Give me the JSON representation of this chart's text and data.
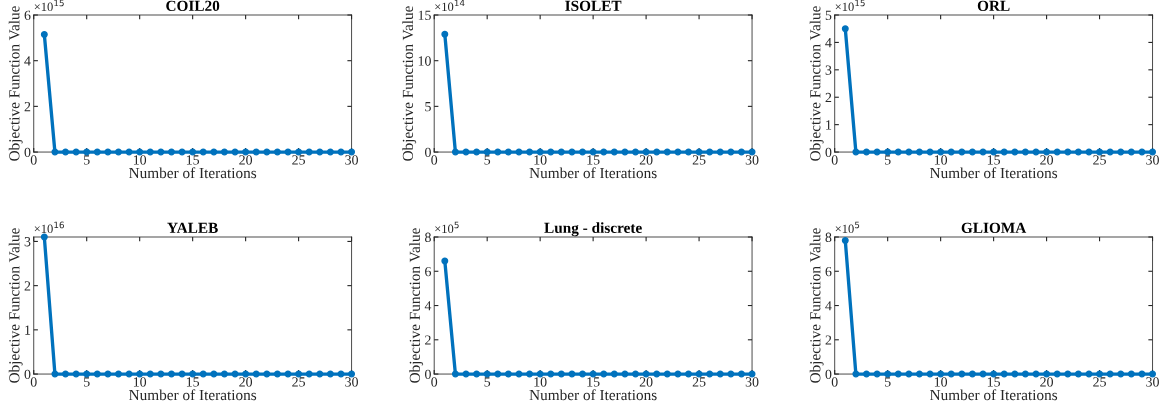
{
  "chart_data": [
    {
      "type": "line",
      "title": "COIL20",
      "xlabel": "Number of Iterations",
      "ylabel": "Objective Function Value",
      "x": [
        1,
        2,
        3,
        4,
        5,
        6,
        7,
        8,
        9,
        10,
        11,
        12,
        13,
        14,
        15,
        16,
        17,
        18,
        19,
        20,
        21,
        22,
        23,
        24,
        25,
        26,
        27,
        28,
        29,
        30
      ],
      "series": [
        {
          "color": "#0072bd",
          "values": [
            5.15,
            0,
            0,
            0,
            0,
            0,
            0,
            0,
            0,
            0,
            0,
            0,
            0,
            0,
            0,
            0,
            0,
            0,
            0,
            0,
            0,
            0,
            0,
            0,
            0,
            0,
            0,
            0,
            0,
            0
          ]
        }
      ],
      "xlim": [
        0,
        30
      ],
      "xticks": [
        0,
        5,
        10,
        15,
        20,
        25,
        30
      ],
      "ylim": [
        0,
        6
      ],
      "yticks": [
        0,
        2,
        4,
        6
      ],
      "annotations": [
        "×10$^{15}$"
      ],
      "marker": "circle",
      "grid": false
    },
    {
      "type": "line",
      "title": "ISOLET",
      "xlabel": "Number of Iterations",
      "ylabel": "Objective Function Value",
      "x": [
        1,
        2,
        3,
        4,
        5,
        6,
        7,
        8,
        9,
        10,
        11,
        12,
        13,
        14,
        15,
        16,
        17,
        18,
        19,
        20,
        21,
        22,
        23,
        24,
        25,
        26,
        27,
        28,
        29,
        30
      ],
      "series": [
        {
          "color": "#0072bd",
          "values": [
            12.9,
            0,
            0,
            0,
            0,
            0,
            0,
            0,
            0,
            0,
            0,
            0,
            0,
            0,
            0,
            0,
            0,
            0,
            0,
            0,
            0,
            0,
            0,
            0,
            0,
            0,
            0,
            0,
            0,
            0
          ]
        }
      ],
      "xlim": [
        0,
        30
      ],
      "xticks": [
        0,
        5,
        10,
        15,
        20,
        25,
        30
      ],
      "ylim": [
        0,
        15
      ],
      "yticks": [
        0,
        5,
        10,
        15
      ],
      "annotations": [
        "×10$^{14}$"
      ],
      "marker": "circle",
      "grid": false
    },
    {
      "type": "line",
      "title": "ORL",
      "xlabel": "Number of Iterations",
      "ylabel": "Objective Function Value",
      "x": [
        1,
        2,
        3,
        4,
        5,
        6,
        7,
        8,
        9,
        10,
        11,
        12,
        13,
        14,
        15,
        16,
        17,
        18,
        19,
        20,
        21,
        22,
        23,
        24,
        25,
        26,
        27,
        28,
        29,
        30
      ],
      "series": [
        {
          "color": "#0072bd",
          "values": [
            4.5,
            0,
            0,
            0,
            0,
            0,
            0,
            0,
            0,
            0,
            0,
            0,
            0,
            0,
            0,
            0,
            0,
            0,
            0,
            0,
            0,
            0,
            0,
            0,
            0,
            0,
            0,
            0,
            0,
            0
          ]
        }
      ],
      "xlim": [
        0,
        30
      ],
      "xticks": [
        0,
        5,
        10,
        15,
        20,
        25,
        30
      ],
      "ylim": [
        0,
        5
      ],
      "yticks": [
        0,
        1,
        2,
        3,
        4,
        5
      ],
      "annotations": [
        "×10$^{15}$"
      ],
      "marker": "circle",
      "grid": false
    },
    {
      "type": "line",
      "title": "YALEB",
      "xlabel": "Number of Iterations",
      "ylabel": "Objective Function Value",
      "x": [
        1,
        2,
        3,
        4,
        5,
        6,
        7,
        8,
        9,
        10,
        11,
        12,
        13,
        14,
        15,
        16,
        17,
        18,
        19,
        20,
        21,
        22,
        23,
        24,
        25,
        26,
        27,
        28,
        29,
        30
      ],
      "series": [
        {
          "color": "#0072bd",
          "values": [
            3.1,
            0,
            0,
            0,
            0,
            0,
            0,
            0,
            0,
            0,
            0,
            0,
            0,
            0,
            0,
            0,
            0,
            0,
            0,
            0,
            0,
            0,
            0,
            0,
            0,
            0,
            0,
            0,
            0,
            0
          ]
        }
      ],
      "xlim": [
        0,
        30
      ],
      "xticks": [
        0,
        5,
        10,
        15,
        20,
        25,
        30
      ],
      "ylim": [
        0,
        3.1
      ],
      "yticks": [
        0,
        1,
        2,
        3
      ],
      "annotations": [
        "×10$^{16}$"
      ],
      "marker": "circle",
      "grid": false
    },
    {
      "type": "line",
      "title": "Lung - discrete",
      "xlabel": "Number of Iterations",
      "ylabel": "Objective Function Value",
      "x": [
        1,
        2,
        3,
        4,
        5,
        6,
        7,
        8,
        9,
        10,
        11,
        12,
        13,
        14,
        15,
        16,
        17,
        18,
        19,
        20,
        21,
        22,
        23,
        24,
        25,
        26,
        27,
        28,
        29,
        30
      ],
      "series": [
        {
          "color": "#0072bd",
          "values": [
            6.6,
            0,
            0,
            0,
            0,
            0,
            0,
            0,
            0,
            0,
            0,
            0,
            0,
            0,
            0,
            0,
            0,
            0,
            0,
            0,
            0,
            0,
            0,
            0,
            0,
            0,
            0,
            0,
            0,
            0
          ]
        }
      ],
      "xlim": [
        0,
        30
      ],
      "xticks": [
        0,
        5,
        10,
        15,
        20,
        25,
        30
      ],
      "ylim": [
        0,
        8
      ],
      "yticks": [
        0,
        2,
        4,
        6,
        8
      ],
      "annotations": [
        "×10$^{5}$"
      ],
      "marker": "circle",
      "grid": false
    },
    {
      "type": "line",
      "title": "GLIOMA",
      "xlabel": "Number of Iterations",
      "ylabel": "Objective Function Value",
      "x": [
        1,
        2,
        3,
        4,
        5,
        6,
        7,
        8,
        9,
        10,
        11,
        12,
        13,
        14,
        15,
        16,
        17,
        18,
        19,
        20,
        21,
        22,
        23,
        24,
        25,
        26,
        27,
        28,
        29,
        30
      ],
      "series": [
        {
          "color": "#0072bd",
          "values": [
            7.8,
            0,
            0,
            0,
            0,
            0,
            0,
            0,
            0,
            0,
            0,
            0,
            0,
            0,
            0,
            0,
            0,
            0,
            0,
            0,
            0,
            0,
            0,
            0,
            0,
            0,
            0,
            0,
            0,
            0
          ]
        }
      ],
      "xlim": [
        0,
        30
      ],
      "xticks": [
        0,
        5,
        10,
        15,
        20,
        25,
        30
      ],
      "ylim": [
        0,
        8
      ],
      "yticks": [
        0,
        2,
        4,
        6,
        8
      ],
      "annotations": [
        "×10$^{5}$"
      ],
      "marker": "circle",
      "grid": false
    }
  ]
}
